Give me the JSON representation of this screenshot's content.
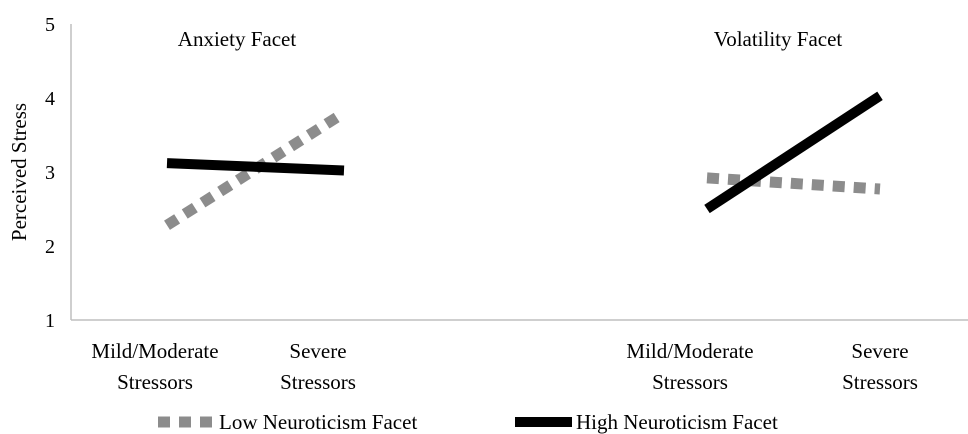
{
  "chart_data": {
    "type": "line",
    "ylabel": "Perceived Stress",
    "ylim": [
      1,
      5
    ],
    "yticks": [
      "1",
      "2",
      "3",
      "4",
      "5"
    ],
    "grid": false,
    "legend_position": "bottom",
    "colors": {
      "low": "#8c8c8c",
      "high": "#000000",
      "axis": "#bfbfbf"
    },
    "panels": [
      {
        "title": "Anxiety Facet",
        "categories": [
          {
            "line1": "Mild/Moderate",
            "line2": "Stressors"
          },
          {
            "line1": "Severe",
            "line2": "Stressors"
          }
        ],
        "series": [
          {
            "name": "Low Neuroticism Facet",
            "values": [
              2.28,
              3.8
            ]
          },
          {
            "name": "High Neuroticism Facet",
            "values": [
              3.12,
              3.02
            ]
          }
        ]
      },
      {
        "title": "Volatility Facet",
        "categories": [
          {
            "line1": "Mild/Moderate",
            "line2": "Stressors"
          },
          {
            "line1": "Severe",
            "line2": "Stressors"
          }
        ],
        "series": [
          {
            "name": "Low Neuroticism Facet",
            "values": [
              2.92,
              2.77
            ]
          },
          {
            "name": "High Neuroticism Facet",
            "values": [
              2.5,
              4.03
            ]
          }
        ]
      }
    ],
    "legend": [
      "Low Neuroticism Facet",
      "High Neuroticism Facet"
    ]
  }
}
